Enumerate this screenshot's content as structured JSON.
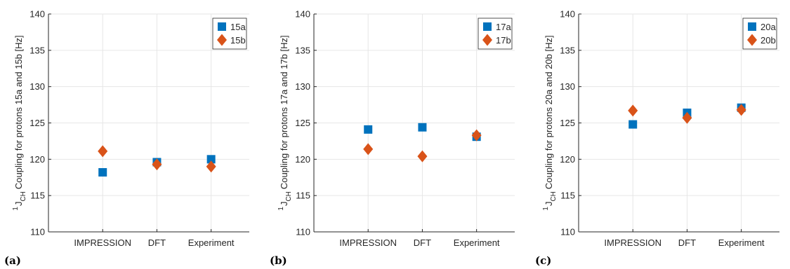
{
  "colors": {
    "series_a": "#0072BD",
    "series_b": "#D95319",
    "grid": "#e6e6e6",
    "axis": "#262626"
  },
  "chart_data": [
    {
      "type": "scatter",
      "panel_label": "(a)",
      "categories": [
        "IMPRESSION",
        "DFT",
        "Experiment"
      ],
      "ylabel": "Coupling for protons  15a and 15b [Hz]",
      "ylabel_prefix": "1",
      "ylabel_sub": "CH",
      "ylim": [
        110,
        140
      ],
      "yticks": [
        110,
        115,
        120,
        125,
        130,
        135,
        140
      ],
      "grid": true,
      "legend_position": "top-right",
      "series": [
        {
          "name": "15a",
          "marker": "square",
          "values": [
            118.2,
            119.6,
            120.0
          ]
        },
        {
          "name": "15b",
          "marker": "diamond",
          "values": [
            121.1,
            119.3,
            119.0
          ]
        }
      ]
    },
    {
      "type": "scatter",
      "panel_label": "(b)",
      "categories": [
        "IMPRESSION",
        "DFT",
        "Experiment"
      ],
      "ylabel": "Coupling for protons  17a and 17b [Hz]",
      "ylabel_prefix": "1",
      "ylabel_sub": "CH",
      "ylim": [
        110,
        140
      ],
      "yticks": [
        110,
        115,
        120,
        125,
        130,
        135,
        140
      ],
      "grid": true,
      "legend_position": "top-right",
      "series": [
        {
          "name": "17a",
          "marker": "square",
          "values": [
            124.1,
            124.4,
            123.1
          ]
        },
        {
          "name": "17b",
          "marker": "diamond",
          "values": [
            121.4,
            120.4,
            123.3
          ]
        }
      ]
    },
    {
      "type": "scatter",
      "panel_label": "(c)",
      "categories": [
        "IMPRESSION",
        "DFT",
        "Experiment"
      ],
      "ylabel": "Coupling for protons  20a and 20b [Hz]",
      "ylabel_prefix": "1",
      "ylabel_sub": "CH",
      "ylim": [
        110,
        140
      ],
      "yticks": [
        110,
        115,
        120,
        125,
        130,
        135,
        140
      ],
      "grid": true,
      "legend_position": "top-right",
      "series": [
        {
          "name": "20a",
          "marker": "square",
          "values": [
            124.8,
            126.4,
            127.1
          ]
        },
        {
          "name": "20b",
          "marker": "diamond",
          "values": [
            126.7,
            125.7,
            126.8
          ]
        }
      ]
    }
  ]
}
